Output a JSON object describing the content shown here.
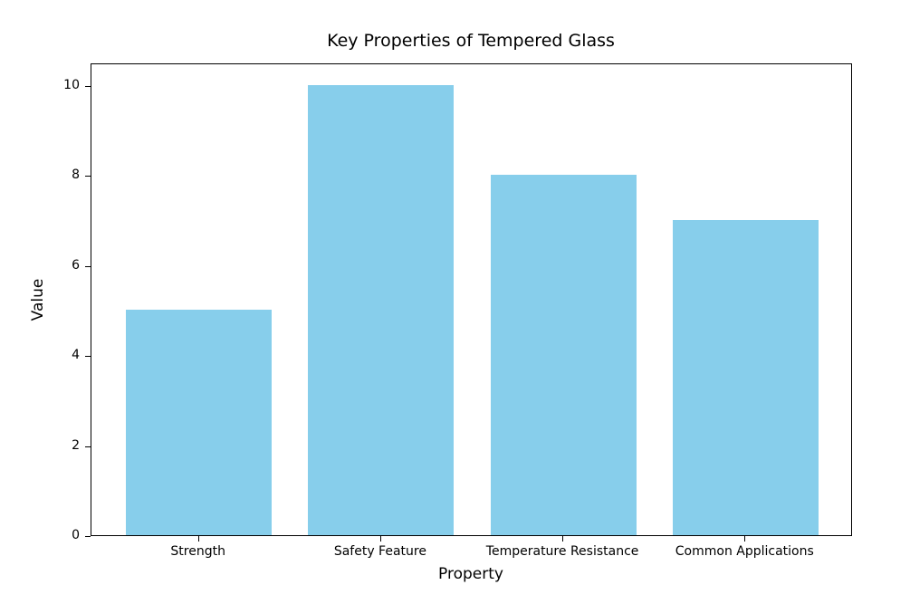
{
  "figure": {
    "background": "#ffffff",
    "text_color": "#000000",
    "spine_color": "#000000"
  },
  "chart_data": {
    "type": "bar",
    "title": "Key Properties of Tempered Glass",
    "xlabel": "Property",
    "ylabel": "Value",
    "categories": [
      "Strength",
      "Safety Feature",
      "Temperature Resistance",
      "Common Applications"
    ],
    "values": [
      5,
      10,
      8,
      7
    ],
    "bar_color": "#87CEEB",
    "bar_width": 0.8,
    "yticks": [
      0,
      2,
      4,
      6,
      8,
      10
    ],
    "ylim": [
      0,
      10.5
    ],
    "xlim": [
      -0.59,
      3.59
    ],
    "grid": false,
    "legend": null
  }
}
